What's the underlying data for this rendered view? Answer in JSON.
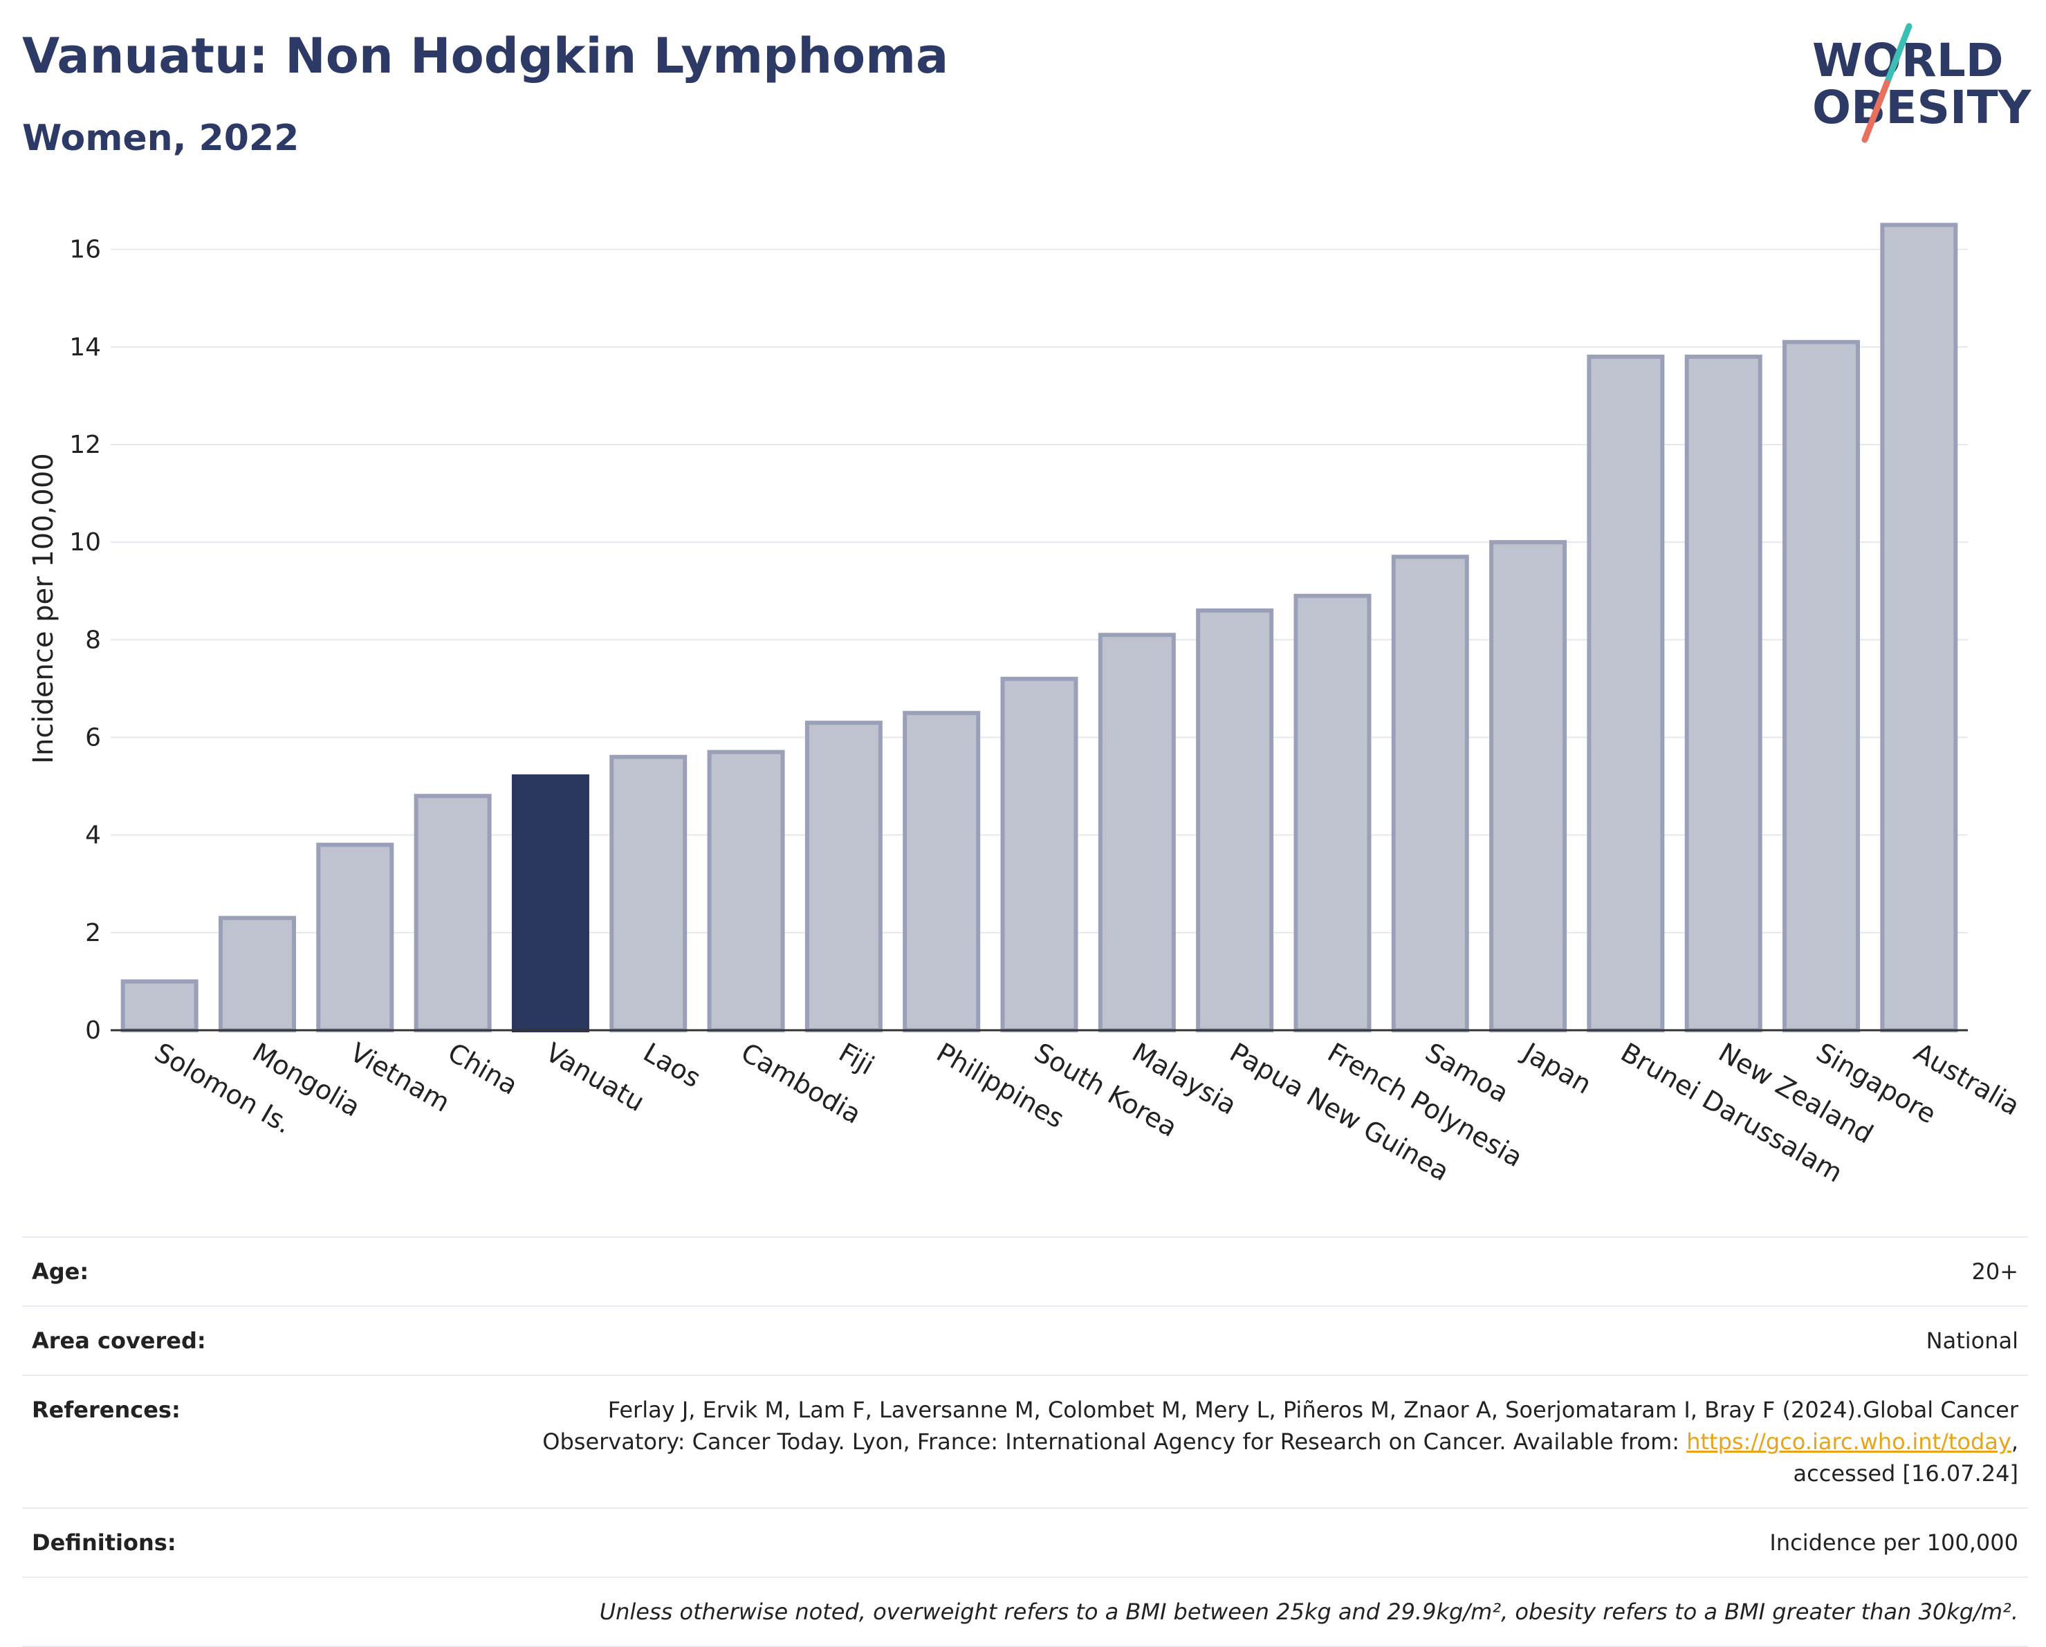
{
  "header": {
    "title": "Vanuatu: Non Hodgkin Lymphoma",
    "subtitle": "Women, 2022",
    "logo_line1": "WORLD",
    "logo_line2": "OBESITY"
  },
  "colors": {
    "title": "#2d3a66",
    "bar": "#bfc3d0",
    "bar_border": "#9aa0b8",
    "highlight": "#2b365e",
    "grid": "#e6e8ef",
    "logo_teal": "#3bbfb4",
    "logo_coral": "#e8705d"
  },
  "chart_data": {
    "type": "bar",
    "ylabel": "Incidence per 100,000",
    "ylim": [
      0,
      17
    ],
    "yticks": [
      0,
      2,
      4,
      6,
      8,
      10,
      12,
      14,
      16
    ],
    "grid": true,
    "highlight": "Vanuatu",
    "categories": [
      "Solomon Is.",
      "Mongolia",
      "Vietnam",
      "China",
      "Vanuatu",
      "Laos",
      "Cambodia",
      "Fiji",
      "Philippines",
      "South Korea",
      "Malaysia",
      "Papua New Guinea",
      "French Polynesia",
      "Samoa",
      "Japan",
      "Brunei Darussalam",
      "New Zealand",
      "Singapore",
      "Australia"
    ],
    "values": [
      1.0,
      2.3,
      3.8,
      4.8,
      5.2,
      5.6,
      5.7,
      6.3,
      6.5,
      7.2,
      8.1,
      8.6,
      8.9,
      9.7,
      10.0,
      13.8,
      13.8,
      14.1,
      16.5
    ]
  },
  "info": {
    "age_label": "Age:",
    "age_value": "20+",
    "area_label": "Area covered:",
    "area_value": "National",
    "references_label": "References:",
    "references_line1": "Ferlay J, Ervik M, Lam F, Laversanne M, Colombet M, Mery L, Piñeros M, Znaor A, Soerjomataram I, Bray F (2024).Global Cancer",
    "references_line2": "Observatory: Cancer Today. Lyon, France: International Agency for Research on Cancer. Available from: ",
    "references_link": "https://gco.iarc.who.int/today",
    "references_line2_end": ",",
    "references_line3": "accessed [16.07.24]",
    "definitions_label": "Definitions:",
    "definitions_value": "Incidence per 100,000",
    "note": "Unless otherwise noted, overweight refers to a BMI between 25kg and 29.9kg/m², obesity refers to a BMI greater than 30kg/m²."
  }
}
